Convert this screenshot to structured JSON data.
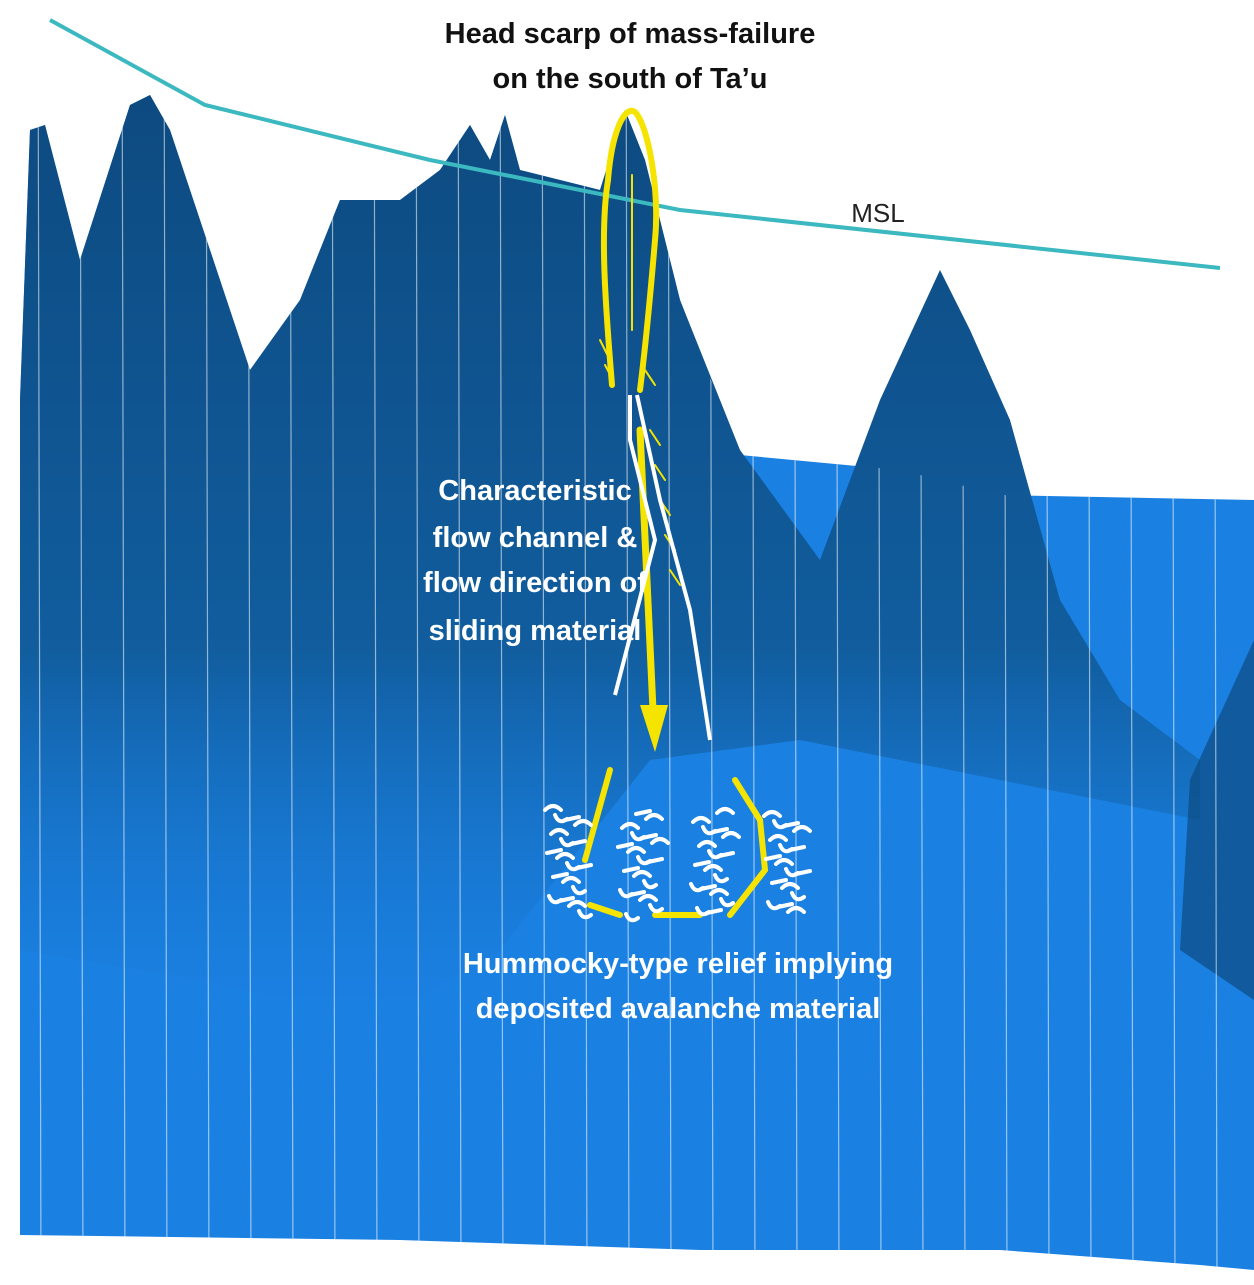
{
  "labels": {
    "head_scarp": [
      "Head scarp of mass-failure",
      "on the south of Ta’u"
    ],
    "msl": "MSL",
    "flow_channel": [
      "Characteristic",
      "flow channel &",
      "flow direction of",
      "sliding material"
    ],
    "hummocky": [
      "Hummocky-type relief implying",
      "deposited avalanche material"
    ]
  }
}
